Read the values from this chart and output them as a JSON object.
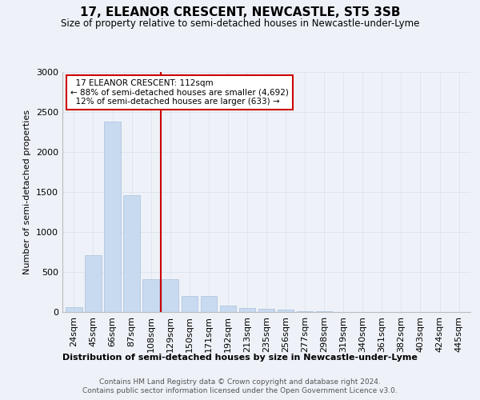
{
  "title": "17, ELEANOR CRESCENT, NEWCASTLE, ST5 3SB",
  "subtitle": "Size of property relative to semi-detached houses in Newcastle-under-Lyme",
  "xlabel_bottom": "Distribution of semi-detached houses by size in Newcastle-under-Lyme",
  "ylabel": "Number of semi-detached properties",
  "categories": [
    "24sqm",
    "45sqm",
    "66sqm",
    "87sqm",
    "108sqm",
    "129sqm",
    "150sqm",
    "171sqm",
    "192sqm",
    "213sqm",
    "235sqm",
    "256sqm",
    "277sqm",
    "298sqm",
    "319sqm",
    "340sqm",
    "361sqm",
    "382sqm",
    "403sqm",
    "424sqm",
    "445sqm"
  ],
  "values": [
    60,
    710,
    2380,
    1460,
    415,
    415,
    200,
    200,
    85,
    55,
    40,
    30,
    15,
    10,
    5,
    5,
    5,
    2,
    2,
    2,
    2
  ],
  "bar_color": "#c8daf0",
  "bar_edgecolor": "#a8c0dc",
  "grid_color": "#dde5f0",
  "background_color": "#eef2f8",
  "property_label": "17 ELEANOR CRESCENT: 112sqm",
  "pct_smaller": 88,
  "n_smaller": 4692,
  "pct_larger": 12,
  "n_larger": 633,
  "vline_position": 4.5,
  "annotation_box_color": "#ffffff",
  "annotation_border_color": "#cc0000",
  "vline_color": "#cc0000",
  "ylim": [
    0,
    3000
  ],
  "footer_line1": "Contains HM Land Registry data © Crown copyright and database right 2024.",
  "footer_line2": "Contains public sector information licensed under the Open Government Licence v3.0."
}
